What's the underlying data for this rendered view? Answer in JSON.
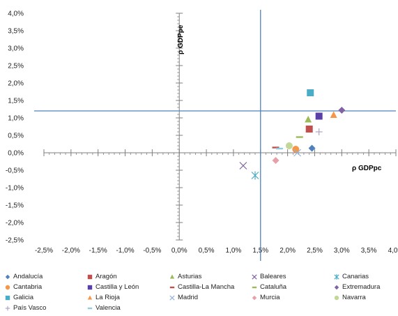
{
  "chart_data": {
    "type": "scatter",
    "xlabel": "ρ GDPpc",
    "ylabel": "ρ GDPpe",
    "xlim": [
      -2.5,
      4.0
    ],
    "ylim": [
      -2.5,
      4.0
    ],
    "x_ticks": [
      "-2,5%",
      "-2,0%",
      "-1,5%",
      "-1,0%",
      "-0,5%",
      "0,0%",
      "0,5%",
      "1,0%",
      "1,5%",
      "2,0%",
      "2,5%",
      "3,0%",
      "3,5%",
      "4,0%"
    ],
    "y_ticks": [
      "-2,5%",
      "-2,0%",
      "-1,5%",
      "-1,0%",
      "-0,5%",
      "0,0%",
      "0,5%",
      "1,0%",
      "1,5%",
      "2,0%",
      "2,5%",
      "3,0%",
      "3,5%",
      "4,0%"
    ],
    "reference_lines": {
      "vertical_x": 1.5,
      "horizontal_y": 1.2,
      "color": "#4f81bd"
    },
    "legend_position": "bottom",
    "series": [
      {
        "name": "Andalucía",
        "marker": "diamond",
        "color": "#4f81bd",
        "x": 2.45,
        "y": 0.13
      },
      {
        "name": "Aragón",
        "marker": "square",
        "color": "#c0504d",
        "x": 2.4,
        "y": 0.68
      },
      {
        "name": "Asturias",
        "marker": "triangle",
        "color": "#9bbb59",
        "x": 2.38,
        "y": 0.95
      },
      {
        "name": "Baleares",
        "marker": "x",
        "color": "#8064a2",
        "x": 1.18,
        "y": -0.37
      },
      {
        "name": "Canarias",
        "marker": "star",
        "color": "#4bacc6",
        "x": 1.4,
        "y": -0.65
      },
      {
        "name": "Cantabria",
        "marker": "circle",
        "color": "#f79646",
        "x": 2.15,
        "y": 0.1
      },
      {
        "name": "Castilla y León",
        "marker": "square",
        "color": "#5b3fa8",
        "x": 2.58,
        "y": 1.05
      },
      {
        "name": "Castilla-La Mancha",
        "marker": "dash",
        "color": "#c0504d",
        "x": 1.78,
        "y": 0.15
      },
      {
        "name": "Cataluña",
        "marker": "dash",
        "color": "#9bbb59",
        "x": 2.22,
        "y": 0.45
      },
      {
        "name": "Extremadura",
        "marker": "diamond",
        "color": "#8064a2",
        "x": 3.0,
        "y": 1.22
      },
      {
        "name": "Galicia",
        "marker": "square",
        "color": "#4bacc6",
        "x": 2.42,
        "y": 1.72
      },
      {
        "name": "La Rioja",
        "marker": "triangle",
        "color": "#f79646",
        "x": 2.85,
        "y": 1.08
      },
      {
        "name": "Madrid",
        "marker": "x",
        "color": "#95b3d7",
        "x": 2.18,
        "y": 0.0
      },
      {
        "name": "Murcia",
        "marker": "diamond",
        "color": "#e6a0a8",
        "x": 1.78,
        "y": -0.22
      },
      {
        "name": "Navarra",
        "marker": "circle",
        "color": "#c4d79b",
        "x": 2.03,
        "y": 0.2
      },
      {
        "name": "País Vasco",
        "marker": "plus",
        "color": "#b3a2c7",
        "x": 2.58,
        "y": 0.6
      },
      {
        "name": "Valencia",
        "marker": "dash",
        "color": "#93cddd",
        "x": 1.85,
        "y": 0.12
      }
    ]
  }
}
